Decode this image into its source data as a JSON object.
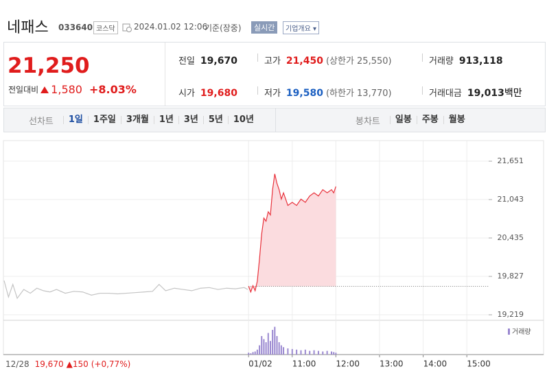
{
  "header": {
    "name": "네패스",
    "code": "033640",
    "market": "코스닥",
    "datetime": "2024.01.02 12:06",
    "basis": "기준(장중)",
    "realtime": "실시간",
    "company_info": "기업개요"
  },
  "quote": {
    "price": "21,250",
    "change_label": "전일대비",
    "change": "1,580",
    "change_pct": "+8.03%"
  },
  "stats": [
    {
      "label": "전일",
      "value": "19,670",
      "color": "#222222"
    },
    {
      "label": "고가",
      "value": "21,450",
      "note": "(상한가 25,550)",
      "color": "#e01c1c"
    },
    {
      "label": "거래량",
      "value": "913,118",
      "color": "#222222"
    },
    {
      "label": "시가",
      "value": "19,680",
      "color": "#e01c1c"
    },
    {
      "label": "저가",
      "value": "19,580",
      "note": "(하한가 13,770)",
      "color": "#1b5fc1"
    },
    {
      "label": "거래대금",
      "value": "19,013",
      "unit": "백만",
      "color": "#222222"
    }
  ],
  "line_tabs": {
    "label": "선차트",
    "items": [
      "1일",
      "1주일",
      "3개월",
      "1년",
      "3년",
      "5년",
      "10년"
    ],
    "selected": 0
  },
  "candle_tabs": {
    "label": "봉차트",
    "items": [
      "일봉",
      "주봉",
      "월봉"
    ]
  },
  "footer": {
    "date": "12/28",
    "close": "19,670",
    "change": "▲150",
    "change_pct": "(+0,77%)"
  },
  "chart_data": {
    "type": "line",
    "xlim": [
      4.4,
      15.5
    ],
    "ylim": [
      19132,
      21977
    ],
    "xticks": [
      {
        "value": 10,
        "label": "01/02"
      },
      {
        "value": 11,
        "label": "11:00"
      },
      {
        "value": 12,
        "label": "12:00"
      },
      {
        "value": 13,
        "label": "13:00"
      },
      {
        "value": 14,
        "label": "14:00"
      },
      {
        "value": 15,
        "label": "15:00"
      }
    ],
    "yticks": [
      {
        "value": 19219,
        "label": "19,219"
      },
      {
        "value": 19827,
        "label": "19,827"
      },
      {
        "value": 20435,
        "label": "20,435"
      },
      {
        "value": 21043,
        "label": "21,043"
      },
      {
        "value": 21651,
        "label": "21,651"
      }
    ],
    "grid": true,
    "reference": 19670,
    "series": [
      {
        "color": "#c4c4c4",
        "x": [
          4.4,
          4.5,
          4.6,
          4.7,
          4.85,
          5.0,
          5.15,
          5.3,
          5.45,
          5.6,
          5.8,
          6.0,
          6.2,
          6.4,
          6.6,
          6.8,
          7.0,
          7.2,
          7.4,
          7.6,
          7.8,
          7.95,
          8.1,
          8.3,
          8.5,
          8.7,
          8.9,
          9.1,
          9.3,
          9.5,
          9.7,
          9.9,
          9.98
        ],
        "values": [
          19760,
          19500,
          19700,
          19480,
          19620,
          19560,
          19640,
          19600,
          19580,
          19620,
          19560,
          19590,
          19580,
          19530,
          19560,
          19560,
          19550,
          19560,
          19570,
          19580,
          19590,
          19700,
          19600,
          19640,
          19620,
          19600,
          19640,
          19650,
          19620,
          19640,
          19630,
          19650,
          19620
        ]
      },
      {
        "color": "#e8303a",
        "fill": "#fbdcdf",
        "x": [
          10.0,
          10.05,
          10.1,
          10.15,
          10.2,
          10.25,
          10.3,
          10.35,
          10.4,
          10.45,
          10.5,
          10.55,
          10.6,
          10.65,
          10.7,
          10.75,
          10.8,
          10.9,
          11.0,
          11.1,
          11.2,
          11.3,
          11.4,
          11.5,
          11.6,
          11.7,
          11.8,
          11.9,
          11.95,
          12.0
        ],
        "values": [
          19670,
          19580,
          19680,
          19600,
          19750,
          20100,
          20500,
          20750,
          20700,
          20850,
          20800,
          21200,
          21450,
          21300,
          21200,
          21050,
          21150,
          20950,
          21000,
          20950,
          21050,
          21000,
          21100,
          21150,
          21100,
          21200,
          21150,
          21200,
          21150,
          21250
        ]
      }
    ],
    "volume": {
      "label": "거래량",
      "color": "#9a88d0",
      "ylim": [
        0,
        50000
      ],
      "x": [
        10.0,
        10.05,
        10.1,
        10.15,
        10.2,
        10.25,
        10.3,
        10.35,
        10.4,
        10.45,
        10.5,
        10.55,
        10.6,
        10.65,
        10.7,
        10.75,
        10.8,
        10.9,
        11.0,
        11.1,
        11.2,
        11.3,
        11.4,
        11.5,
        11.6,
        11.7,
        11.8,
        11.9,
        11.95,
        12.0
      ],
      "values": [
        3000,
        2000,
        4000,
        5000,
        8000,
        15000,
        30000,
        25000,
        20000,
        35000,
        22000,
        40000,
        45000,
        30000,
        20000,
        15000,
        12000,
        10000,
        9000,
        8000,
        7000,
        8000,
        6000,
        7000,
        6000,
        5000,
        6000,
        5000,
        4000,
        3000
      ]
    }
  }
}
